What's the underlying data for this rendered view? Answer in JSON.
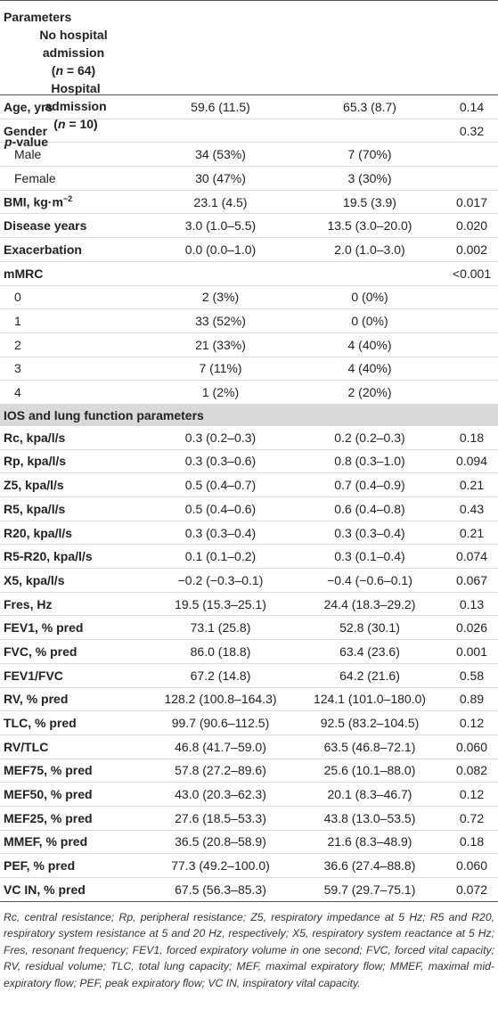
{
  "table": {
    "header": [
      {
        "lines": [
          "Parameters"
        ]
      },
      {
        "lines": [
          "No hospital",
          "admission",
          {
            "before": "(",
            "var": "n",
            "after": " = 64)"
          }
        ]
      },
      {
        "lines": [
          "Hospital",
          "admission",
          {
            "before": "(",
            "var": "n",
            "after": " = 10)"
          }
        ]
      },
      {
        "lines": [
          {
            "var": "p",
            "after": "-value"
          }
        ]
      }
    ],
    "rows": [
      {
        "label": "Age, yrs",
        "values": [
          "59.6 (11.5)",
          "65.3 (8.7)",
          "0.14"
        ]
      },
      {
        "label": "Gender",
        "values": [
          "",
          "",
          "0.32"
        ],
        "subrows": [
          {
            "label": "Male",
            "values": [
              "34 (53%)",
              "7 (70%)",
              ""
            ]
          },
          {
            "label": "Female",
            "values": [
              "30 (47%)",
              "3 (30%)",
              ""
            ]
          }
        ]
      },
      {
        "label": {
          "text": "BMI, kg·m",
          "sup": "−2"
        },
        "values": [
          "23.1 (4.5)",
          "19.5 (3.9)",
          "0.017"
        ]
      },
      {
        "label": "Disease years",
        "values": [
          "3.0 (1.0–5.5)",
          "13.5 (3.0–20.0)",
          "0.020"
        ]
      },
      {
        "label": "Exacerbation",
        "values": [
          "0.0 (0.0–1.0)",
          "2.0 (1.0–3.0)",
          "0.002"
        ]
      },
      {
        "label": "mMRC",
        "values": [
          "",
          "",
          "<0.001"
        ],
        "subrows": [
          {
            "label": "0",
            "values": [
              "2 (3%)",
              "0 (0%)",
              ""
            ]
          },
          {
            "label": "1",
            "values": [
              "33 (52%)",
              "0 (0%)",
              ""
            ]
          },
          {
            "label": "2",
            "values": [
              "21 (33%)",
              "4 (40%)",
              ""
            ]
          },
          {
            "label": "3",
            "values": [
              "7 (11%)",
              "4 (40%)",
              ""
            ]
          },
          {
            "label": "4",
            "values": [
              "1 (2%)",
              "2 (20%)",
              ""
            ]
          }
        ]
      }
    ],
    "section": "IOS and lung function parameters",
    "section_rows": [
      {
        "label": "Rc, kpa/l/s",
        "values": [
          "0.3 (0.2–0.3)",
          "0.2 (0.2–0.3)",
          "0.18"
        ]
      },
      {
        "label": "Rp, kpa/l/s",
        "values": [
          "0.3 (0.3–0.6)",
          "0.8 (0.3–1.0)",
          "0.094"
        ]
      },
      {
        "label": "Z5, kpa/l/s",
        "values": [
          "0.5 (0.4–0.7)",
          "0.7 (0.4–0.9)",
          "0.21"
        ]
      },
      {
        "label": "R5, kpa/l/s",
        "values": [
          "0.5 (0.4–0.6)",
          "0.6 (0.4–0.8)",
          "0.43"
        ]
      },
      {
        "label": "R20, kpa/l/s",
        "values": [
          "0.3 (0.3–0.4)",
          "0.3 (0.3–0.4)",
          "0.21"
        ]
      },
      {
        "label": "R5-R20, kpa/l/s",
        "values": [
          "0.1 (0.1–0.2)",
          "0.3 (0.1–0.4)",
          "0.074"
        ]
      },
      {
        "label": "X5, kpa/l/s",
        "values": [
          "−0.2 (−0.3–0.1)",
          "−0.4 (−0.6–0.1)",
          "0.067"
        ]
      },
      {
        "label": "Fres, Hz",
        "values": [
          "19.5 (15.3–25.1)",
          "24.4 (18.3–29.2)",
          "0.13"
        ]
      },
      {
        "label": "FEV1, % pred",
        "values": [
          "73.1 (25.8)",
          "52.8 (30.1)",
          "0.026"
        ]
      },
      {
        "label": "FVC, % pred",
        "values": [
          "86.0 (18.8)",
          "63.4 (23.6)",
          "0.001"
        ]
      },
      {
        "label": "FEV1/FVC",
        "values": [
          "67.2 (14.8)",
          "64.2 (21.6)",
          "0.58"
        ]
      },
      {
        "label": "RV, % pred",
        "values": [
          "128.2 (100.8–164.3)",
          "124.1 (101.0–180.0)",
          "0.89"
        ]
      },
      {
        "label": "TLC, % pred",
        "values": [
          "99.7 (90.6–112.5)",
          "92.5 (83.2–104.5)",
          "0.12"
        ]
      },
      {
        "label": "RV/TLC",
        "values": [
          "46.8 (41.7–59.0)",
          "63.5 (46.8–72.1)",
          "0.060"
        ]
      },
      {
        "label": "MEF75, % pred",
        "values": [
          "57.8 (27.2–89.6)",
          "25.6 (10.1–88.0)",
          "0.082"
        ]
      },
      {
        "label": "MEF50, % pred",
        "values": [
          "43.0 (20.3–62.3)",
          "20.1 (8.3–46.7)",
          "0.12"
        ]
      },
      {
        "label": "MEF25, % pred",
        "values": [
          "27.6 (18.5–53.3)",
          "43.8 (13.0–53.5)",
          "0.72"
        ]
      },
      {
        "label": "MMEF, % pred",
        "values": [
          "36.5 (20.8–58.9)",
          "21.6 (8.3–48.9)",
          "0.18"
        ]
      },
      {
        "label": "PEF, % pred",
        "values": [
          "77.3 (49.2–100.0)",
          "36.6 (27.4–88.8)",
          "0.060"
        ]
      },
      {
        "label": "VC IN, % pred",
        "values": [
          "67.5 (56.3–85.3)",
          "59.7 (29.7–75.1)",
          "0.072"
        ]
      }
    ],
    "footnote": "Rc, central resistance; Rp, peripheral resistance; Z5, respiratory impedance at 5 Hz; R5 and R20, respiratory system resistance at 5 and 20 Hz, respectively; X5, respiratory system reactance at 5 Hz; Fres, resonant frequency; FEV1, forced expiratory volume in one second; FVC, forced vital capacity; RV, residual volume; TLC, total lung capacity; MEF, maximal expiratory flow; MMEF, maximal mid-expiratory flow; PEF, peak expiratory flow; VC IN, inspiratory vital capacity."
  }
}
